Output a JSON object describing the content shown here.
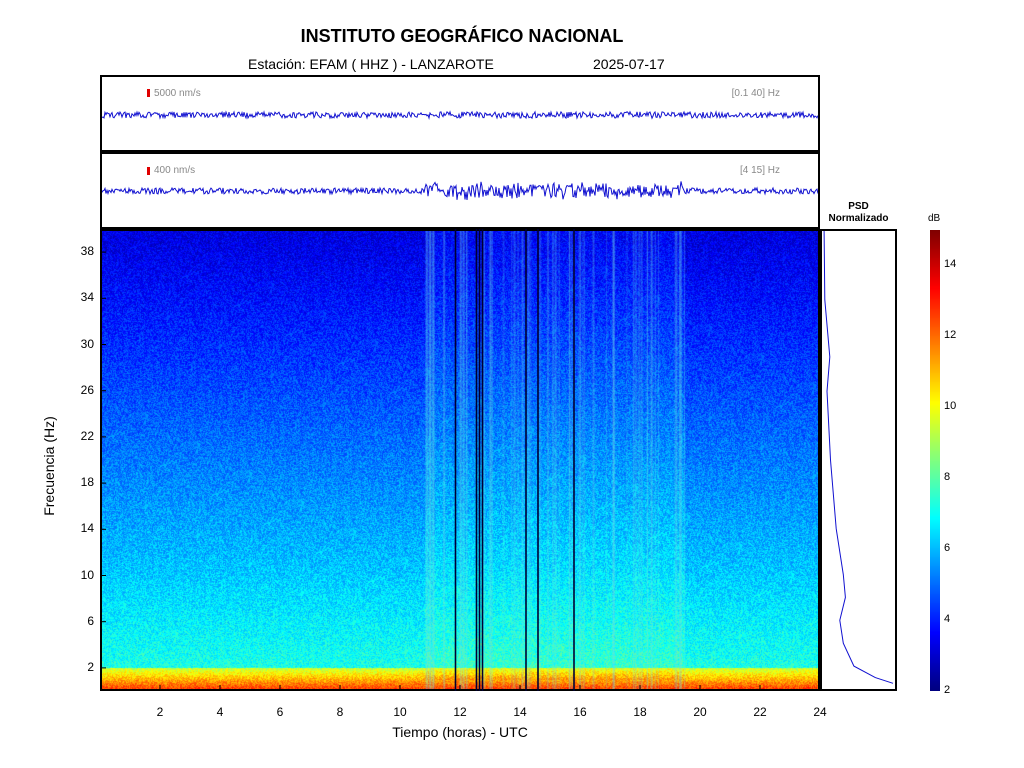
{
  "header": {
    "title": "INSTITUTO GEOGRÁFICO NACIONAL",
    "station_text": "Estación:  EFAM ( HHZ ) - LANZAROTE",
    "date": "2025-07-17"
  },
  "traces": [
    {
      "scale": "5000 nm/s",
      "band": "[0.1 40] Hz"
    },
    {
      "scale": "400 nm/s",
      "band": "[4 15] Hz"
    }
  ],
  "psd": {
    "title_line1": "PSD",
    "title_line2": "Normalizado"
  },
  "colorbar": {
    "unit": "dB",
    "min": 2,
    "max": 15,
    "ticks": [
      "2",
      "4",
      "6",
      "8",
      "10",
      "12",
      "14"
    ]
  },
  "chart_data": {
    "type": "heatmap",
    "xlabel": "Tiempo (horas) - UTC",
    "ylabel": "Frecuencia  (Hz)",
    "xlim": [
      0,
      24
    ],
    "ylim": [
      0,
      40
    ],
    "x_ticks": [
      "2",
      "4",
      "6",
      "8",
      "10",
      "12",
      "14",
      "16",
      "18",
      "20",
      "22",
      "24"
    ],
    "y_ticks": [
      "2",
      "6",
      "10",
      "14",
      "18",
      "22",
      "26",
      "30",
      "34",
      "38"
    ],
    "colormap": "jet",
    "background_energy_bands": [
      {
        "freq_range": [
          0,
          2
        ],
        "level_db": 13
      },
      {
        "freq_range": [
          2,
          10
        ],
        "level_db": 7
      },
      {
        "freq_range": [
          10,
          40
        ],
        "level_db": 4
      }
    ],
    "gap_lines_hours": [
      11.85,
      12.55,
      12.65,
      12.75,
      14.2,
      14.6,
      15.8
    ],
    "activity_window_hours": [
      10.8,
      19.5
    ],
    "psd_profile": [
      {
        "freq": 0.5,
        "value": 1.0
      },
      {
        "freq": 1,
        "value": 0.75
      },
      {
        "freq": 2,
        "value": 0.45
      },
      {
        "freq": 4,
        "value": 0.3
      },
      {
        "freq": 6,
        "value": 0.25
      },
      {
        "freq": 8,
        "value": 0.33
      },
      {
        "freq": 10,
        "value": 0.3
      },
      {
        "freq": 14,
        "value": 0.2
      },
      {
        "freq": 20,
        "value": 0.12
      },
      {
        "freq": 26,
        "value": 0.07
      },
      {
        "freq": 29,
        "value": 0.11
      },
      {
        "freq": 34,
        "value": 0.04
      },
      {
        "freq": 40,
        "value": 0.03
      }
    ]
  }
}
